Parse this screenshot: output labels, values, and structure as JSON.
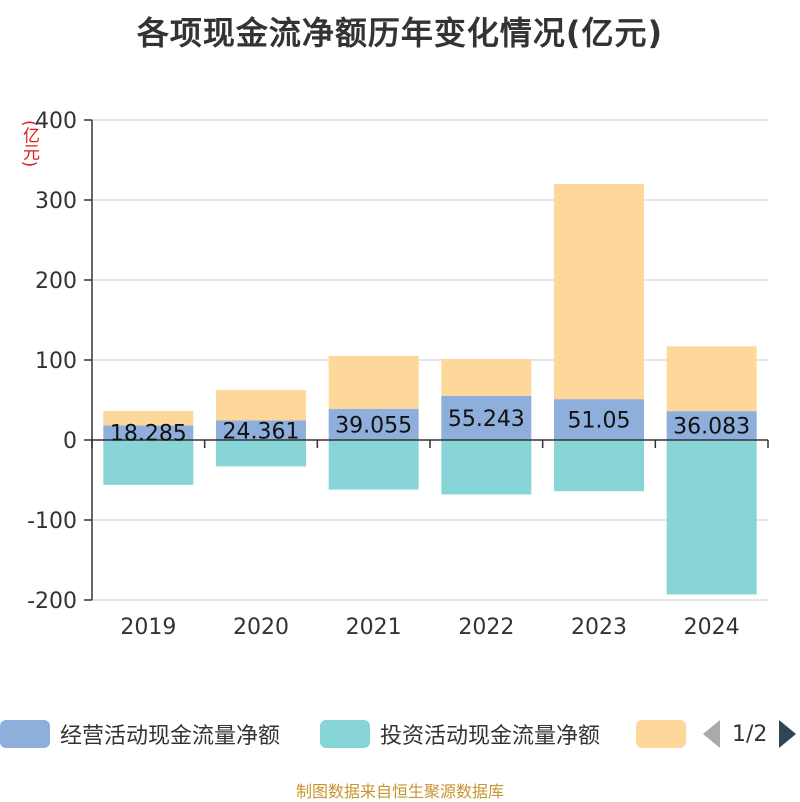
{
  "chart_data": {
    "type": "bar",
    "stacked": true,
    "title": "各项现金流净额历年变化情况(亿元)",
    "ylabel": "(亿元)",
    "categories": [
      "2019",
      "2020",
      "2021",
      "2022",
      "2023",
      "2024"
    ],
    "yticks": [
      "400",
      "300",
      "200",
      "100",
      "0",
      "-100",
      "-200"
    ],
    "ylim": [
      -200,
      400
    ],
    "series": [
      {
        "name": "经营活动现金流量净额",
        "color": "#8eaedb",
        "values": [
          18.285,
          24.361,
          39.055,
          55.243,
          51.05,
          36.083
        ],
        "labels": [
          "18.285",
          "24.361",
          "39.055",
          "55.243",
          "51.05",
          "36.083"
        ]
      },
      {
        "name": "投资活动现金流量净额",
        "color": "#87d5d6",
        "values": [
          -56,
          -33,
          -62,
          -68,
          -64,
          -193
        ]
      },
      {
        "name": "",
        "color": "#fed89a",
        "values": [
          18,
          38,
          66,
          46,
          269,
          81
        ]
      }
    ]
  },
  "legend": {
    "page_text": "1/2"
  },
  "footer": "制图数据来自恒生聚源数据库"
}
